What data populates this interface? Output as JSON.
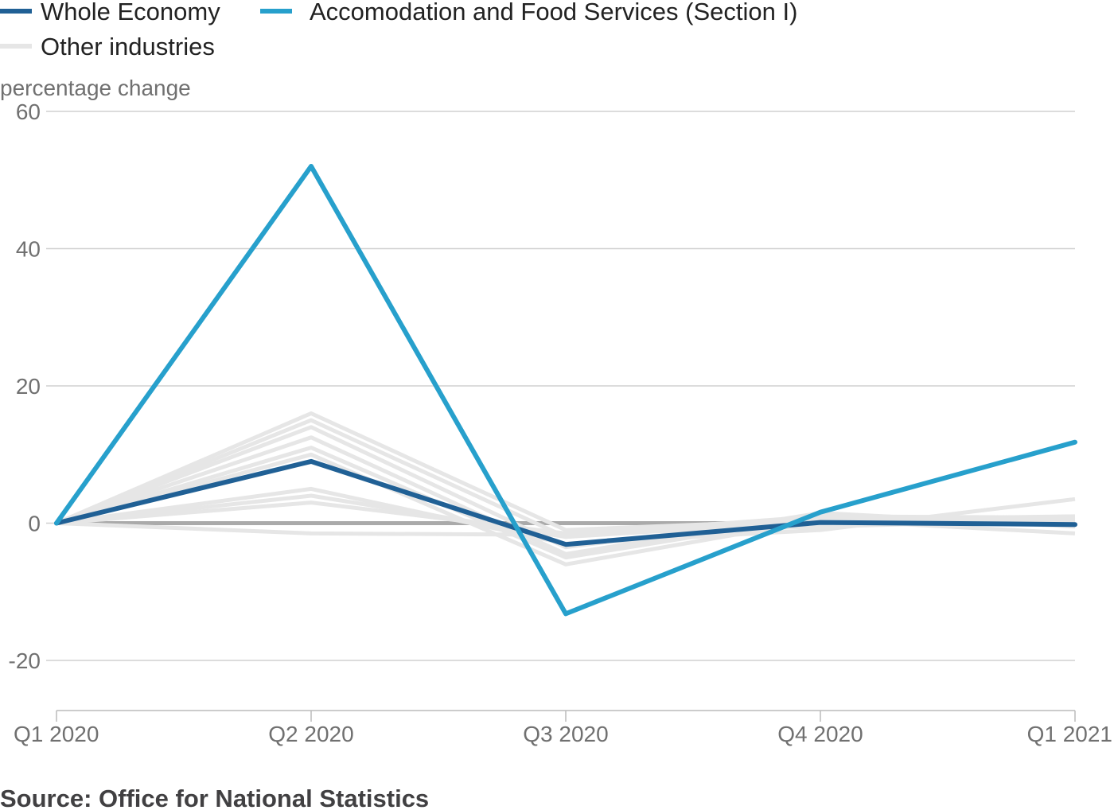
{
  "chart_data": {
    "type": "line",
    "ylabel": "percentage change",
    "ylim": [
      -25,
      60
    ],
    "yticks": [
      60,
      40,
      20,
      0,
      -20
    ],
    "categories": [
      "Q1 2020",
      "Q2 2020",
      "Q3 2020",
      "Q4 2020",
      "Q1 2021"
    ],
    "legend": {
      "placement": "top-left",
      "entries": [
        "Whole Economy",
        "Accomodation and Food Services (Section I)",
        "Other industries"
      ]
    },
    "series": [
      {
        "name": "Whole Economy",
        "color": "#206095",
        "values": [
          0,
          9,
          -3.1,
          0.1,
          -0.2
        ]
      },
      {
        "name": "Accomodation and Food Services (Section I)",
        "color": "#27a0cc",
        "values": [
          0,
          52,
          -13.2,
          1.6,
          11.8
        ]
      }
    ],
    "other_industries": {
      "name": "Other industries",
      "color": "#e6e6e6",
      "series": [
        [
          0,
          16,
          -1.0,
          0.5,
          1.0
        ],
        [
          0,
          15,
          -2.0,
          0.8,
          0.5
        ],
        [
          0,
          14,
          -3.5,
          1.2,
          0.2
        ],
        [
          0,
          12.5,
          -4.5,
          1.5,
          -0.5
        ],
        [
          0,
          11,
          -5.0,
          1.0,
          0.8
        ],
        [
          0,
          10,
          -6.0,
          0.5,
          -1.5
        ],
        [
          0,
          5,
          -3.0,
          -1.0,
          3.5
        ],
        [
          0,
          4,
          -2.0,
          0.3,
          0.0
        ],
        [
          0,
          3,
          -1.5,
          -0.5,
          0.5
        ],
        [
          0,
          -1.5,
          -1.7,
          1.0,
          0.5
        ]
      ],
      "zero_line_color": "#aaaaaa"
    },
    "grid": true,
    "source": "Source: Office for National Statistics"
  }
}
